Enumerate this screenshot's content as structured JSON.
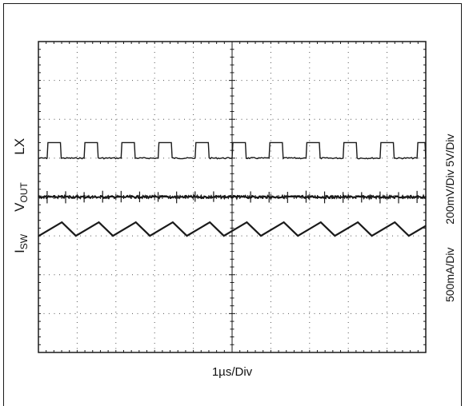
{
  "chart_data": {
    "type": "line",
    "title": "",
    "xlabel": "1µs/Div",
    "x_unit": "µs",
    "xlim": [
      0,
      10
    ],
    "divisions": {
      "horizontal": 10,
      "vertical": 8
    },
    "grid": true,
    "series": [
      {
        "name": "LX",
        "label_main": "LX",
        "label_sub": "",
        "scale": "5V/Div",
        "kind": "square",
        "period": 0.955,
        "duty": 0.38,
        "rise_start": 0.225,
        "y_low_div": 1.0,
        "y_high_div": 1.4,
        "color": "#1a1a1a"
      },
      {
        "name": "VOUT",
        "label_main": "V",
        "label_sub": "OUT",
        "scale": "200mV/Div",
        "kind": "flat-with-spikes",
        "period": 0.955,
        "spike_offset": 0.225,
        "y_div": 0.0,
        "color": "#1a1a1a"
      },
      {
        "name": "ISW",
        "label_main": "I",
        "label_sub": "SW",
        "scale": "500mA/Div",
        "kind": "sawtooth",
        "period": 0.955,
        "peak_offset": 0.605,
        "y_valley_div": -1.0,
        "y_peak_div": -0.65,
        "color": "#1a1a1a"
      }
    ]
  }
}
